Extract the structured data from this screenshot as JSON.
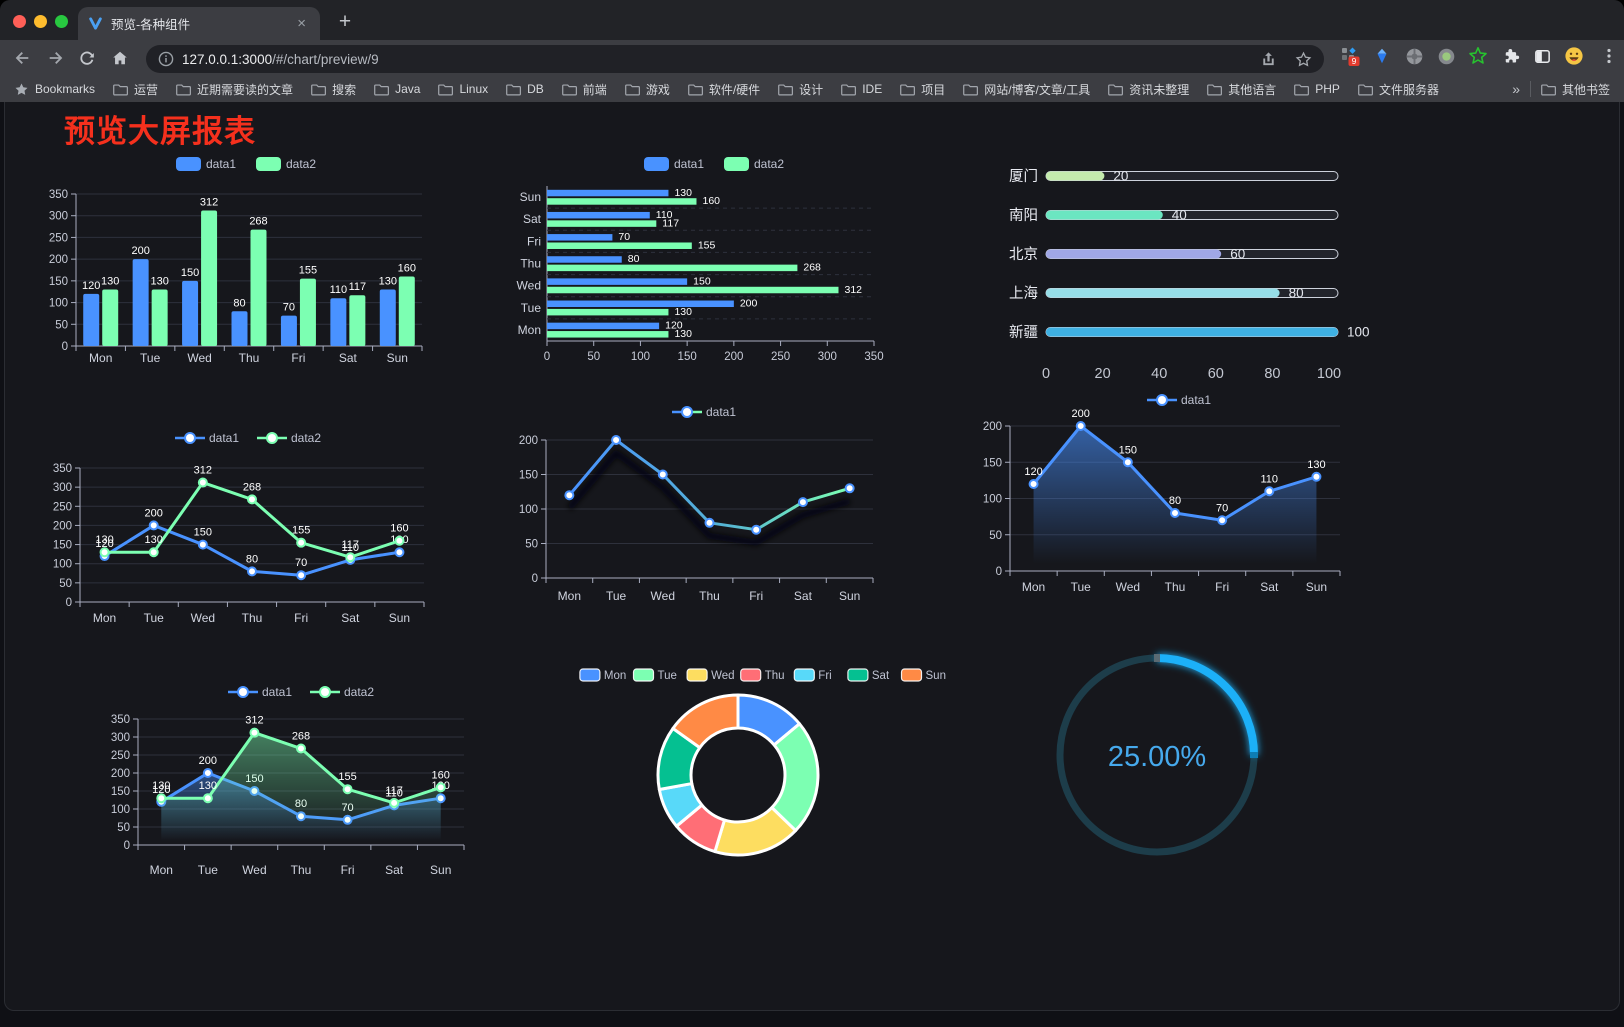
{
  "window": {
    "traffic_lights": [
      "#ff5f57",
      "#febc2e",
      "#28c840"
    ]
  },
  "browser": {
    "tab": {
      "title": "预览-各种组件",
      "close_glyph": "×",
      "new_tab_glyph": "+"
    },
    "address": {
      "url_host": "127.0.0.1:3000",
      "url_path": "/#/chart/preview/9"
    },
    "extension_badge": "9",
    "bookmarks_label": "Bookmarks",
    "bookmarks": [
      "运营",
      "近期需要读的文章",
      "搜索",
      "Java",
      "Linux",
      "DB",
      "前端",
      "游戏",
      "软件/硬件",
      "设计",
      "IDE",
      "项目",
      "网站/博客/文章/工具",
      "资讯未整理",
      "其他语言",
      "PHP",
      "文件服务器"
    ],
    "bookmarks_overflow_glyph": "»",
    "other_bookmarks": "其他书签",
    "icons": [
      "back-arrow",
      "forward-arrow",
      "reload",
      "home",
      "info",
      "share",
      "bookmark-star",
      "grid-badge-extension",
      "gem-extension",
      "wheel-extension",
      "record-extension",
      "green-star-extension",
      "puzzle-extensions",
      "side-panel",
      "emoji-extension",
      "kebab-menu"
    ]
  },
  "page": {
    "title": "预览大屏报表",
    "title_color": "#f5301d"
  },
  "chart_data": [
    {
      "id": "bar-vertical",
      "type": "bar",
      "categories": [
        "Mon",
        "Tue",
        "Wed",
        "Thu",
        "Fri",
        "Sat",
        "Sun"
      ],
      "series": [
        {
          "name": "data1",
          "color": "#4992ff",
          "values": [
            120,
            200,
            150,
            80,
            70,
            110,
            130
          ]
        },
        {
          "name": "data2",
          "color": "#7cffb2",
          "values": [
            130,
            130,
            312,
            268,
            155,
            117,
            160
          ]
        }
      ],
      "ylim": [
        0,
        350
      ],
      "ytick": 50,
      "legend_position": "top",
      "grid": true
    },
    {
      "id": "bar-horizontal",
      "type": "bar",
      "orientation": "horizontal",
      "categories": [
        "Mon",
        "Tue",
        "Wed",
        "Thu",
        "Fri",
        "Sat",
        "Sun"
      ],
      "series": [
        {
          "name": "data1",
          "color": "#4992ff",
          "values": [
            120,
            200,
            150,
            80,
            70,
            110,
            130
          ]
        },
        {
          "name": "data2",
          "color": "#7cffb2",
          "values": [
            130,
            130,
            312,
            268,
            155,
            117,
            160
          ]
        }
      ],
      "xlim": [
        0,
        350
      ],
      "xtick": 50,
      "legend_position": "top",
      "grid": true
    },
    {
      "id": "city-progress",
      "type": "bar",
      "orientation": "horizontal-progress",
      "items": [
        {
          "label": "厦门",
          "value": 20,
          "color": "#c4ebad"
        },
        {
          "label": "南阳",
          "value": 40,
          "color": "#6be6c1"
        },
        {
          "label": "北京",
          "value": 60,
          "color": "#a0a7e6"
        },
        {
          "label": "上海",
          "value": 80,
          "color": "#96dee8"
        },
        {
          "label": "新疆",
          "value": 100,
          "color": "#3fb1e3"
        }
      ],
      "xlim": [
        0,
        100
      ],
      "xticks": [
        0,
        20,
        40,
        60,
        80,
        100
      ]
    },
    {
      "id": "line-two",
      "type": "line",
      "categories": [
        "Mon",
        "Tue",
        "Wed",
        "Thu",
        "Fri",
        "Sat",
        "Sun"
      ],
      "series": [
        {
          "name": "data1",
          "color": "#4992ff",
          "values": [
            120,
            200,
            150,
            80,
            70,
            110,
            130
          ]
        },
        {
          "name": "data2",
          "color": "#7cffb2",
          "values": [
            130,
            130,
            312,
            268,
            155,
            117,
            160
          ]
        }
      ],
      "ylim": [
        0,
        350
      ],
      "ytick": 50,
      "legend_position": "top",
      "grid": true
    },
    {
      "id": "line-gradient",
      "type": "line",
      "categories": [
        "Mon",
        "Tue",
        "Wed",
        "Thu",
        "Fri",
        "Sat",
        "Sun"
      ],
      "series": [
        {
          "name": "data1",
          "colors": [
            "#4992ff",
            "#7cffb2"
          ],
          "values": [
            120,
            200,
            150,
            80,
            70,
            110,
            130
          ]
        }
      ],
      "ylim": [
        0,
        200
      ],
      "ytick": 50,
      "legend_position": "top",
      "grid": true
    },
    {
      "id": "area-single",
      "type": "area",
      "categories": [
        "Mon",
        "Tue",
        "Wed",
        "Thu",
        "Fri",
        "Sat",
        "Sun"
      ],
      "series": [
        {
          "name": "data1",
          "color": "#4992ff",
          "values": [
            120,
            200,
            150,
            80,
            70,
            110,
            130
          ]
        }
      ],
      "ylim": [
        0,
        200
      ],
      "ytick": 50,
      "legend_position": "top",
      "grid": true
    },
    {
      "id": "area-two",
      "type": "area",
      "categories": [
        "Mon",
        "Tue",
        "Wed",
        "Thu",
        "Fri",
        "Sat",
        "Sun"
      ],
      "series": [
        {
          "name": "data1",
          "color": "#4992ff",
          "values": [
            120,
            200,
            150,
            80,
            70,
            110,
            130
          ]
        },
        {
          "name": "data2",
          "color": "#7cffb2",
          "values": [
            130,
            130,
            312,
            268,
            155,
            117,
            160
          ]
        }
      ],
      "ylim": [
        0,
        350
      ],
      "ytick": 50,
      "legend_position": "top",
      "grid": true
    },
    {
      "id": "donut",
      "type": "pie",
      "items": [
        {
          "label": "Mon",
          "value": 120,
          "color": "#4992ff"
        },
        {
          "label": "Tue",
          "value": 200,
          "color": "#7cffb2"
        },
        {
          "label": "Wed",
          "value": 150,
          "color": "#fddd60"
        },
        {
          "label": "Thu",
          "value": 80,
          "color": "#ff6e76"
        },
        {
          "label": "Fri",
          "value": 70,
          "color": "#58d9f9"
        },
        {
          "label": "Sat",
          "value": 110,
          "color": "#05c091"
        },
        {
          "label": "Sun",
          "value": 130,
          "color": "#ff8a45"
        }
      ],
      "legend_position": "top",
      "border_color": "#ffffff"
    },
    {
      "id": "gauge",
      "type": "gauge",
      "value": 25,
      "label": "25.00%",
      "color": "#1fb0f8",
      "track": "#1d3d4a",
      "text_color": "#46a9ec"
    }
  ]
}
